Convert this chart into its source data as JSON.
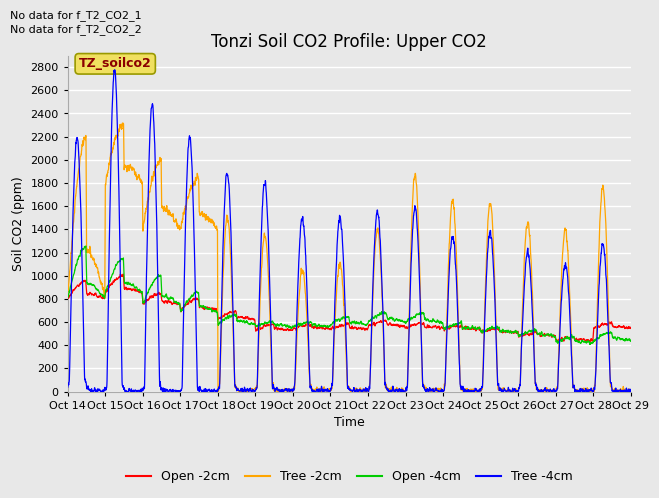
{
  "title": "Tonzi Soil CO2 Profile: Upper CO2",
  "ylabel": "Soil CO2 (ppm)",
  "xlabel": "Time",
  "no_data_text": [
    "No data for f_T2_CO2_1",
    "No data for f_T2_CO2_2"
  ],
  "annotation": "TZ_soilco2",
  "ylim": [
    0,
    2900
  ],
  "yticks": [
    0,
    200,
    400,
    600,
    800,
    1000,
    1200,
    1400,
    1600,
    1800,
    2000,
    2200,
    2400,
    2600,
    2800
  ],
  "xtick_labels": [
    "Oct 14",
    "Oct 15",
    "Oct 16",
    "Oct 17",
    "Oct 18",
    "Oct 19",
    "Oct 20",
    "Oct 21",
    "Oct 22",
    "Oct 23",
    "Oct 24",
    "Oct 25",
    "Oct 26",
    "Oct 27",
    "Oct 28",
    "Oct 29"
  ],
  "legend": [
    {
      "label": "Open -2cm",
      "color": "#ff0000"
    },
    {
      "label": "Tree -2cm",
      "color": "#ffa500"
    },
    {
      "label": "Open -4cm",
      "color": "#00cc00"
    },
    {
      "label": "Tree -4cm",
      "color": "#0000ff"
    }
  ],
  "bg_color": "#e8e8e8",
  "grid_color": "#ffffff",
  "title_fontsize": 12,
  "axis_label_fontsize": 9,
  "tick_fontsize": 8,
  "annotation_fontsize": 9,
  "nodata_fontsize": 8
}
